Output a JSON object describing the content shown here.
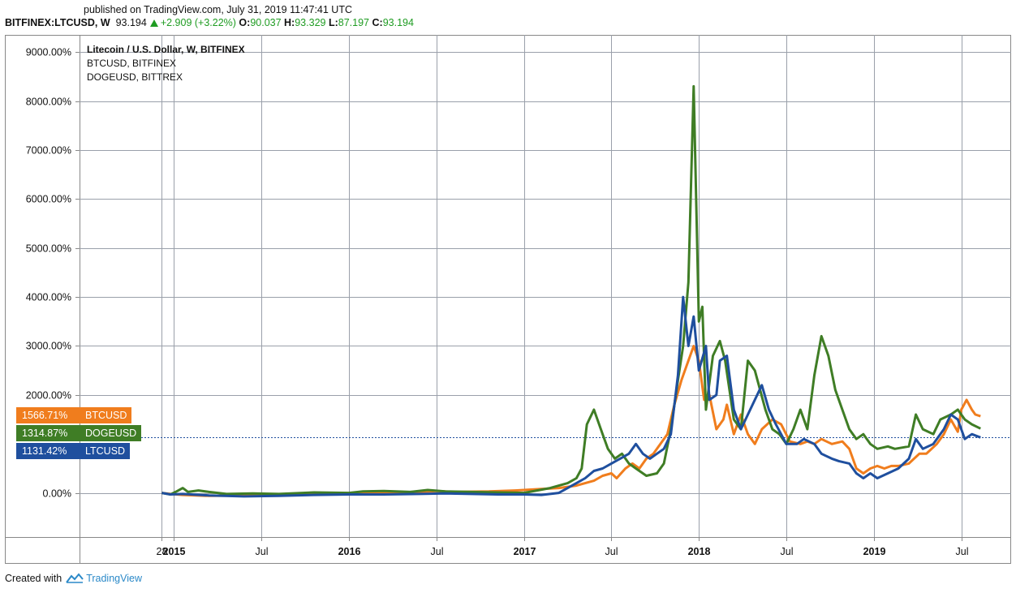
{
  "header": {
    "published": "published on TradingView.com, July 31, 2019 11:47:41 UTC",
    "symbol": "BITFINEX:LTCUSD, W",
    "price": "93.194",
    "change": "+2.909 (+3.22%)",
    "o_label": "O:",
    "o_value": "90.037",
    "h_label": "H:",
    "h_value": "93.329",
    "l_label": "L:",
    "l_value": "87.197",
    "c_label": "C:",
    "c_value": "93.194"
  },
  "legend": {
    "main": "Litecoin / U.S. Dollar, W, BITFINEX",
    "s2": "BTCUSD, BITFINEX",
    "s3": "DOGEUSD, BITTREX"
  },
  "tags": [
    {
      "value": "1566.71%",
      "name": "BTCUSD",
      "color": "#f07d1d"
    },
    {
      "value": "1314.87%",
      "name": "DOGEUSD",
      "color": "#3f7d25"
    },
    {
      "value": "1131.42%",
      "name": "LTCUSD",
      "color": "#1f4f9e"
    }
  ],
  "footer": {
    "created": "Created with",
    "brand": "TradingView"
  },
  "chart_data": {
    "type": "line",
    "y_ticks": [
      "9000.00%",
      "8000.00%",
      "7000.00%",
      "6000.00%",
      "5000.00%",
      "4000.00%",
      "3000.00%",
      "2000.00%",
      "0.00%"
    ],
    "y_tick_values": [
      9000,
      8000,
      7000,
      6000,
      5000,
      4000,
      3000,
      2000,
      0
    ],
    "x_ticks": [
      "28",
      "2015",
      "Jul",
      "2016",
      "Jul",
      "2017",
      "Jul",
      "2018",
      "Jul",
      "2019",
      "Jul"
    ],
    "x_tick_values": [
      2014.93,
      2015.0,
      2015.5,
      2016.0,
      2016.5,
      2017.0,
      2017.5,
      2018.0,
      2018.5,
      2019.0,
      2019.5
    ],
    "x_range": [
      2014.46,
      2019.78
    ],
    "y_range": [
      -900,
      9350
    ],
    "current_line": 1131.42,
    "series": [
      {
        "name": "BTCUSD",
        "color": "#f07d1d",
        "points": [
          [
            2014.93,
            0
          ],
          [
            2014.98,
            -20
          ],
          [
            2015.05,
            -40
          ],
          [
            2015.2,
            -60
          ],
          [
            2015.4,
            -50
          ],
          [
            2015.6,
            -40
          ],
          [
            2015.8,
            -30
          ],
          [
            2016.0,
            -20
          ],
          [
            2016.2,
            0
          ],
          [
            2016.4,
            20
          ],
          [
            2016.5,
            40
          ],
          [
            2016.6,
            20
          ],
          [
            2016.8,
            30
          ],
          [
            2016.95,
            50
          ],
          [
            2017.0,
            60
          ],
          [
            2017.1,
            80
          ],
          [
            2017.2,
            100
          ],
          [
            2017.3,
            150
          ],
          [
            2017.35,
            200
          ],
          [
            2017.4,
            250
          ],
          [
            2017.45,
            350
          ],
          [
            2017.5,
            400
          ],
          [
            2017.53,
            300
          ],
          [
            2017.58,
            500
          ],
          [
            2017.62,
            600
          ],
          [
            2017.66,
            500
          ],
          [
            2017.7,
            700
          ],
          [
            2017.74,
            800
          ],
          [
            2017.78,
            1000
          ],
          [
            2017.82,
            1200
          ],
          [
            2017.86,
            1800
          ],
          [
            2017.9,
            2300
          ],
          [
            2017.94,
            2700
          ],
          [
            2017.97,
            3000
          ],
          [
            2018.0,
            2700
          ],
          [
            2018.03,
            1900
          ],
          [
            2018.06,
            2000
          ],
          [
            2018.1,
            1300
          ],
          [
            2018.14,
            1500
          ],
          [
            2018.16,
            1800
          ],
          [
            2018.2,
            1200
          ],
          [
            2018.24,
            1600
          ],
          [
            2018.28,
            1200
          ],
          [
            2018.32,
            1000
          ],
          [
            2018.36,
            1300
          ],
          [
            2018.42,
            1500
          ],
          [
            2018.47,
            1400
          ],
          [
            2018.52,
            1050
          ],
          [
            2018.58,
            1000
          ],
          [
            2018.62,
            1050
          ],
          [
            2018.66,
            1000
          ],
          [
            2018.7,
            1100
          ],
          [
            2018.76,
            1000
          ],
          [
            2018.82,
            1050
          ],
          [
            2018.86,
            900
          ],
          [
            2018.9,
            500
          ],
          [
            2018.94,
            400
          ],
          [
            2018.98,
            500
          ],
          [
            2019.02,
            550
          ],
          [
            2019.06,
            500
          ],
          [
            2019.1,
            550
          ],
          [
            2019.14,
            550
          ],
          [
            2019.2,
            600
          ],
          [
            2019.26,
            800
          ],
          [
            2019.3,
            800
          ],
          [
            2019.36,
            1000
          ],
          [
            2019.4,
            1200
          ],
          [
            2019.44,
            1500
          ],
          [
            2019.48,
            1250
          ],
          [
            2019.5,
            1700
          ],
          [
            2019.53,
            1900
          ],
          [
            2019.56,
            1700
          ],
          [
            2019.58,
            1600
          ],
          [
            2019.61,
            1566
          ]
        ]
      },
      {
        "name": "DOGEUSD",
        "color": "#3f7d25",
        "points": [
          [
            2014.93,
            0
          ],
          [
            2014.98,
            -30
          ],
          [
            2015.02,
            40
          ],
          [
            2015.05,
            100
          ],
          [
            2015.08,
            20
          ],
          [
            2015.14,
            50
          ],
          [
            2015.2,
            20
          ],
          [
            2015.3,
            -20
          ],
          [
            2015.45,
            -10
          ],
          [
            2015.6,
            -20
          ],
          [
            2015.8,
            10
          ],
          [
            2016.0,
            0
          ],
          [
            2016.08,
            30
          ],
          [
            2016.2,
            40
          ],
          [
            2016.35,
            20
          ],
          [
            2016.45,
            60
          ],
          [
            2016.55,
            30
          ],
          [
            2016.7,
            20
          ],
          [
            2016.85,
            10
          ],
          [
            2017.0,
            0
          ],
          [
            2017.15,
            100
          ],
          [
            2017.25,
            200
          ],
          [
            2017.3,
            300
          ],
          [
            2017.33,
            500
          ],
          [
            2017.36,
            1400
          ],
          [
            2017.4,
            1700
          ],
          [
            2017.45,
            1200
          ],
          [
            2017.48,
            900
          ],
          [
            2017.52,
            700
          ],
          [
            2017.56,
            800
          ],
          [
            2017.6,
            600
          ],
          [
            2017.64,
            500
          ],
          [
            2017.7,
            350
          ],
          [
            2017.76,
            400
          ],
          [
            2017.8,
            600
          ],
          [
            2017.84,
            1300
          ],
          [
            2017.88,
            2300
          ],
          [
            2017.91,
            3000
          ],
          [
            2017.94,
            4300
          ],
          [
            2017.97,
            8300
          ],
          [
            2018.0,
            3500
          ],
          [
            2018.02,
            3800
          ],
          [
            2018.04,
            1700
          ],
          [
            2018.08,
            2800
          ],
          [
            2018.12,
            3100
          ],
          [
            2018.15,
            2700
          ],
          [
            2018.2,
            1500
          ],
          [
            2018.24,
            1300
          ],
          [
            2018.28,
            2700
          ],
          [
            2018.32,
            2500
          ],
          [
            2018.35,
            2100
          ],
          [
            2018.38,
            1700
          ],
          [
            2018.42,
            1300
          ],
          [
            2018.46,
            1200
          ],
          [
            2018.5,
            1000
          ],
          [
            2018.54,
            1300
          ],
          [
            2018.58,
            1700
          ],
          [
            2018.62,
            1300
          ],
          [
            2018.66,
            2400
          ],
          [
            2018.7,
            3200
          ],
          [
            2018.74,
            2800
          ],
          [
            2018.78,
            2100
          ],
          [
            2018.82,
            1700
          ],
          [
            2018.86,
            1300
          ],
          [
            2018.9,
            1100
          ],
          [
            2018.94,
            1200
          ],
          [
            2018.98,
            1000
          ],
          [
            2019.02,
            900
          ],
          [
            2019.08,
            950
          ],
          [
            2019.12,
            900
          ],
          [
            2019.2,
            950
          ],
          [
            2019.24,
            1600
          ],
          [
            2019.28,
            1300
          ],
          [
            2019.34,
            1200
          ],
          [
            2019.38,
            1500
          ],
          [
            2019.44,
            1600
          ],
          [
            2019.48,
            1700
          ],
          [
            2019.52,
            1500
          ],
          [
            2019.56,
            1400
          ],
          [
            2019.61,
            1314
          ]
        ]
      },
      {
        "name": "LTCUSD",
        "color": "#1f4f9e",
        "points": [
          [
            2014.93,
            0
          ],
          [
            2014.98,
            -30
          ],
          [
            2015.05,
            -20
          ],
          [
            2015.2,
            -50
          ],
          [
            2015.4,
            -70
          ],
          [
            2015.6,
            -60
          ],
          [
            2015.8,
            -40
          ],
          [
            2016.0,
            -30
          ],
          [
            2016.2,
            -30
          ],
          [
            2016.4,
            -20
          ],
          [
            2016.55,
            -10
          ],
          [
            2016.7,
            -20
          ],
          [
            2016.85,
            -30
          ],
          [
            2017.0,
            -30
          ],
          [
            2017.1,
            -40
          ],
          [
            2017.2,
            0
          ],
          [
            2017.25,
            100
          ],
          [
            2017.3,
            200
          ],
          [
            2017.35,
            300
          ],
          [
            2017.4,
            450
          ],
          [
            2017.45,
            500
          ],
          [
            2017.5,
            600
          ],
          [
            2017.55,
            700
          ],
          [
            2017.6,
            800
          ],
          [
            2017.64,
            1000
          ],
          [
            2017.68,
            800
          ],
          [
            2017.72,
            700
          ],
          [
            2017.76,
            800
          ],
          [
            2017.8,
            900
          ],
          [
            2017.84,
            1200
          ],
          [
            2017.88,
            2400
          ],
          [
            2017.91,
            4000
          ],
          [
            2017.94,
            3000
          ],
          [
            2017.97,
            3600
          ],
          [
            2018.0,
            2500
          ],
          [
            2018.04,
            3000
          ],
          [
            2018.06,
            1900
          ],
          [
            2018.1,
            2000
          ],
          [
            2018.12,
            2700
          ],
          [
            2018.16,
            2800
          ],
          [
            2018.2,
            1700
          ],
          [
            2018.24,
            1300
          ],
          [
            2018.28,
            1600
          ],
          [
            2018.32,
            1900
          ],
          [
            2018.36,
            2200
          ],
          [
            2018.4,
            1700
          ],
          [
            2018.44,
            1400
          ],
          [
            2018.5,
            1000
          ],
          [
            2018.56,
            1000
          ],
          [
            2018.6,
            1100
          ],
          [
            2018.66,
            1000
          ],
          [
            2018.7,
            800
          ],
          [
            2018.76,
            700
          ],
          [
            2018.8,
            650
          ],
          [
            2018.86,
            600
          ],
          [
            2018.9,
            400
          ],
          [
            2018.94,
            300
          ],
          [
            2018.98,
            400
          ],
          [
            2019.02,
            300
          ],
          [
            2019.08,
            400
          ],
          [
            2019.14,
            500
          ],
          [
            2019.2,
            700
          ],
          [
            2019.24,
            1100
          ],
          [
            2019.28,
            900
          ],
          [
            2019.34,
            1000
          ],
          [
            2019.4,
            1300
          ],
          [
            2019.44,
            1600
          ],
          [
            2019.48,
            1500
          ],
          [
            2019.52,
            1100
          ],
          [
            2019.56,
            1200
          ],
          [
            2019.61,
            1131
          ]
        ]
      }
    ]
  }
}
